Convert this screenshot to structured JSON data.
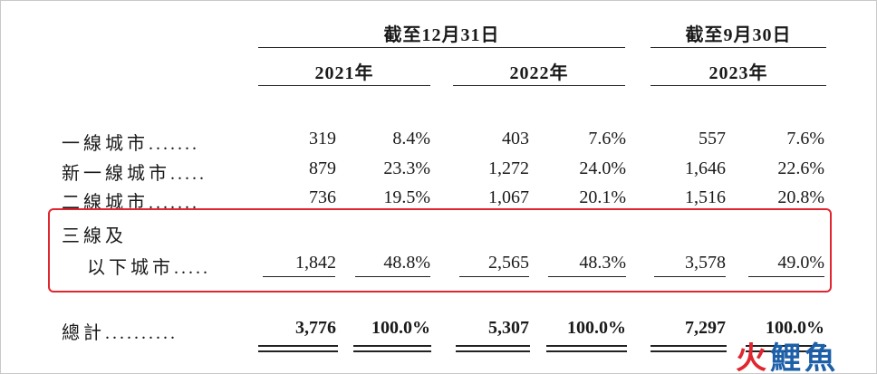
{
  "headers": {
    "group1": "截至12月31日",
    "group2": "截至9月30日",
    "year1": "2021年",
    "year2": "2022年",
    "year3": "2023年"
  },
  "rows": [
    {
      "label": "一線城市",
      "dots": ".......",
      "v2021": "319",
      "p2021": "8.4%",
      "v2022": "403",
      "p2022": "7.6%",
      "v2023": "557",
      "p2023": "7.6%"
    },
    {
      "label": "新一線城市",
      "dots": ".....",
      "v2021": "879",
      "p2021": "23.3%",
      "v2022": "1,272",
      "p2022": "24.0%",
      "v2023": "1,646",
      "p2023": "22.6%"
    },
    {
      "label": "二線城市",
      "dots": ".......",
      "v2021": "736",
      "p2021": "19.5%",
      "v2022": "1,067",
      "p2022": "20.1%",
      "v2023": "1,516",
      "p2023": "20.8%"
    },
    {
      "label_line1": "三線及",
      "label_line2": "以下城市",
      "dots": ".....",
      "v2021": "1,842",
      "p2021": "48.8%",
      "v2022": "2,565",
      "p2022": "48.3%",
      "v2023": "3,578",
      "p2023": "49.0%"
    }
  ],
  "total": {
    "label": "總計",
    "dots": "..........",
    "v2021": "3,776",
    "p2021": "100.0%",
    "v2022": "5,307",
    "p2022": "100.0%",
    "v2023": "7,297",
    "p2023": "100.0%"
  },
  "watermark": {
    "char1": "火",
    "char2": "鯉",
    "char3": "魚"
  },
  "colors": {
    "highlight": "#e0262f",
    "watermark_red": "#e0262f",
    "watermark_blue": "#1d5fa8"
  }
}
